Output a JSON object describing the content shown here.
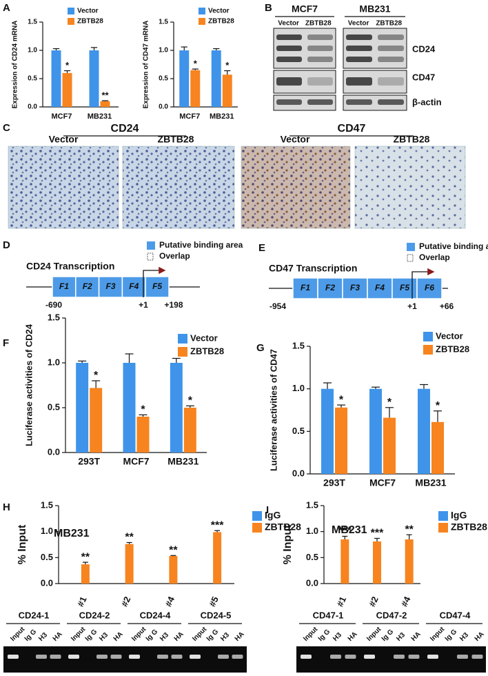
{
  "panel_labels": [
    "A",
    "B",
    "C",
    "D",
    "E",
    "F",
    "G",
    "H",
    "I"
  ],
  "chart_data": [
    {
      "type": "bar",
      "ylabel": "Expression of CD24 mRNA",
      "categories": [
        "MCF7",
        "MB231"
      ],
      "series": [
        {
          "name": "Vector",
          "color": "#3f94ea",
          "values": [
            1.0,
            1.0
          ],
          "errors": [
            0.03,
            0.05
          ]
        },
        {
          "name": "ZBTB28",
          "color": "#f7841f",
          "values": [
            0.6,
            0.1
          ],
          "errors": [
            0.04,
            0.01
          ],
          "significance": [
            "*",
            "**"
          ]
        }
      ],
      "ylim": [
        0,
        1.5
      ],
      "yticks": [
        {
          "value": 0,
          "label": "0.0"
        },
        {
          "value": 0.5,
          "label": "0.5"
        },
        {
          "value": 1,
          "label": "1.0"
        },
        {
          "value": 1.5,
          "label": "1.5"
        }
      ]
    },
    {
      "type": "bar",
      "ylabel": "Expression of CD47 mRNA",
      "categories": [
        "MCF7",
        "MB231"
      ],
      "series": [
        {
          "name": "Vector",
          "color": "#3f94ea",
          "values": [
            1.0,
            1.0
          ],
          "errors": [
            0.06,
            0.03
          ]
        },
        {
          "name": "ZBTB28",
          "color": "#f7841f",
          "values": [
            0.65,
            0.57
          ],
          "errors": [
            0.02,
            0.07
          ],
          "significance": [
            "*",
            "*"
          ]
        }
      ],
      "ylim": [
        0,
        1.5
      ],
      "yticks": [
        {
          "value": 0,
          "label": "0.0"
        },
        {
          "value": 0.5,
          "label": "0.5"
        },
        {
          "value": 1,
          "label": "1.0"
        },
        {
          "value": 1.5,
          "label": "1.5"
        }
      ]
    },
    {
      "type": "bar",
      "ylabel": "Luciferase activities of CD24",
      "categories": [
        "293T",
        "MCF7",
        "MB231"
      ],
      "series": [
        {
          "name": "Vector",
          "color": "#3f94ea",
          "values": [
            1.0,
            1.0,
            1.0
          ],
          "errors": [
            0.02,
            0.1,
            0.05
          ]
        },
        {
          "name": "ZBTB28",
          "color": "#f7841f",
          "values": [
            0.72,
            0.4,
            0.5
          ],
          "errors": [
            0.08,
            0.02,
            0.02
          ],
          "significance": [
            "*",
            "*",
            "*"
          ]
        }
      ],
      "ylim": [
        0,
        1.5
      ],
      "yticks": [
        {
          "value": 0,
          "label": "0.0"
        },
        {
          "value": 0.5,
          "label": "0.5"
        },
        {
          "value": 1,
          "label": "1.0"
        },
        {
          "value": 1.5,
          "label": "1.5"
        }
      ]
    },
    {
      "type": "bar",
      "ylabel": "Luciferase activities of CD47",
      "categories": [
        "293T",
        "MCF7",
        "MB231"
      ],
      "series": [
        {
          "name": "Vector",
          "color": "#3f94ea",
          "values": [
            1.0,
            1.0,
            1.0
          ],
          "errors": [
            0.07,
            0.02,
            0.05
          ]
        },
        {
          "name": "ZBTB28",
          "color": "#f7841f",
          "values": [
            0.78,
            0.66,
            0.61
          ],
          "errors": [
            0.03,
            0.12,
            0.13
          ],
          "significance": [
            "*",
            "*",
            "*"
          ]
        }
      ],
      "ylim": [
        0,
        1.5
      ],
      "yticks": [
        {
          "value": 0,
          "label": "0.0"
        },
        {
          "value": 0.5,
          "label": "0.5"
        },
        {
          "value": 1,
          "label": "1.0"
        },
        {
          "value": 1.5,
          "label": "1.5"
        }
      ]
    },
    {
      "type": "bar",
      "title": "MB231",
      "ylabel": "% Input",
      "categories": [
        "#1",
        "#2",
        "#4",
        "#5"
      ],
      "series": [
        {
          "name": "IgG",
          "color": "#3f94ea",
          "values": [
            0,
            0,
            0,
            0
          ]
        },
        {
          "name": "ZBTB28",
          "color": "#f7841f",
          "values": [
            0.37,
            0.76,
            0.53,
            0.99
          ],
          "errors": [
            0.04,
            0.03,
            0.01,
            0.03
          ],
          "significance": [
            "**",
            "**",
            "**",
            "***"
          ]
        }
      ],
      "ylim": [
        0,
        1.5
      ],
      "yticks": [
        {
          "value": 0,
          "label": "0.0"
        },
        {
          "value": 0.5,
          "label": "0.5"
        },
        {
          "value": 1,
          "label": "1.0"
        },
        {
          "value": 1.5,
          "label": "1.5"
        }
      ]
    },
    {
      "type": "bar",
      "title": "MB231",
      "ylabel": "% Input",
      "categories": [
        "#1",
        "#2",
        "#4"
      ],
      "series": [
        {
          "name": "IgG",
          "color": "#3f94ea",
          "values": [
            0,
            0,
            0
          ]
        },
        {
          "name": "ZBTB28",
          "color": "#f7841f",
          "values": [
            0.85,
            0.81,
            0.85
          ],
          "errors": [
            0.06,
            0.06,
            0.09
          ],
          "significance": [
            "***",
            "***",
            "**"
          ]
        }
      ],
      "ylim": [
        0,
        1.5
      ],
      "yticks": [
        {
          "value": 0,
          "label": "0.0"
        },
        {
          "value": 0.5,
          "label": "0.5"
        },
        {
          "value": 1,
          "label": "1.0"
        },
        {
          "value": 1.5,
          "label": "1.5"
        }
      ]
    }
  ],
  "blot_b": {
    "cell_lines": [
      "MCF7",
      "MB231"
    ],
    "lanes": [
      "Vector",
      "ZBTB28",
      "Vector",
      "ZBTB28"
    ],
    "proteins": [
      "CD24",
      "CD47",
      "β-actin"
    ]
  },
  "ihc": {
    "markers": [
      "CD24",
      "CD47"
    ],
    "groups": [
      "Vector",
      "ZBTB28",
      "Vector",
      "ZBTB28"
    ]
  },
  "diagram_d": {
    "legend": [
      "Putative binding area",
      "Overlap"
    ],
    "title": "CD24 Transcription",
    "fragments": [
      "F1",
      "F2",
      "F3",
      "F4",
      "F5"
    ],
    "positions": [
      "-690",
      "+1",
      "+198"
    ]
  },
  "diagram_e": {
    "legend": [
      "Putative binding area",
      "Overlap"
    ],
    "title": "CD47 Transcription",
    "fragments": [
      "F1",
      "F2",
      "F3",
      "F4",
      "F5",
      "F6"
    ],
    "positions": [
      "-954",
      "+1",
      "+66"
    ]
  },
  "chip_blots": [
    {
      "groups": [
        "CD24-1",
        "CD24-2",
        "CD24-4",
        "CD24-5"
      ],
      "lanes": [
        "Input",
        "Ig G",
        "H3",
        "HA"
      ]
    },
    {
      "groups": [
        "CD47-1",
        "CD47-2",
        "CD47-4"
      ],
      "lanes": [
        "Input",
        "Ig G",
        "H3",
        "HA"
      ]
    }
  ]
}
